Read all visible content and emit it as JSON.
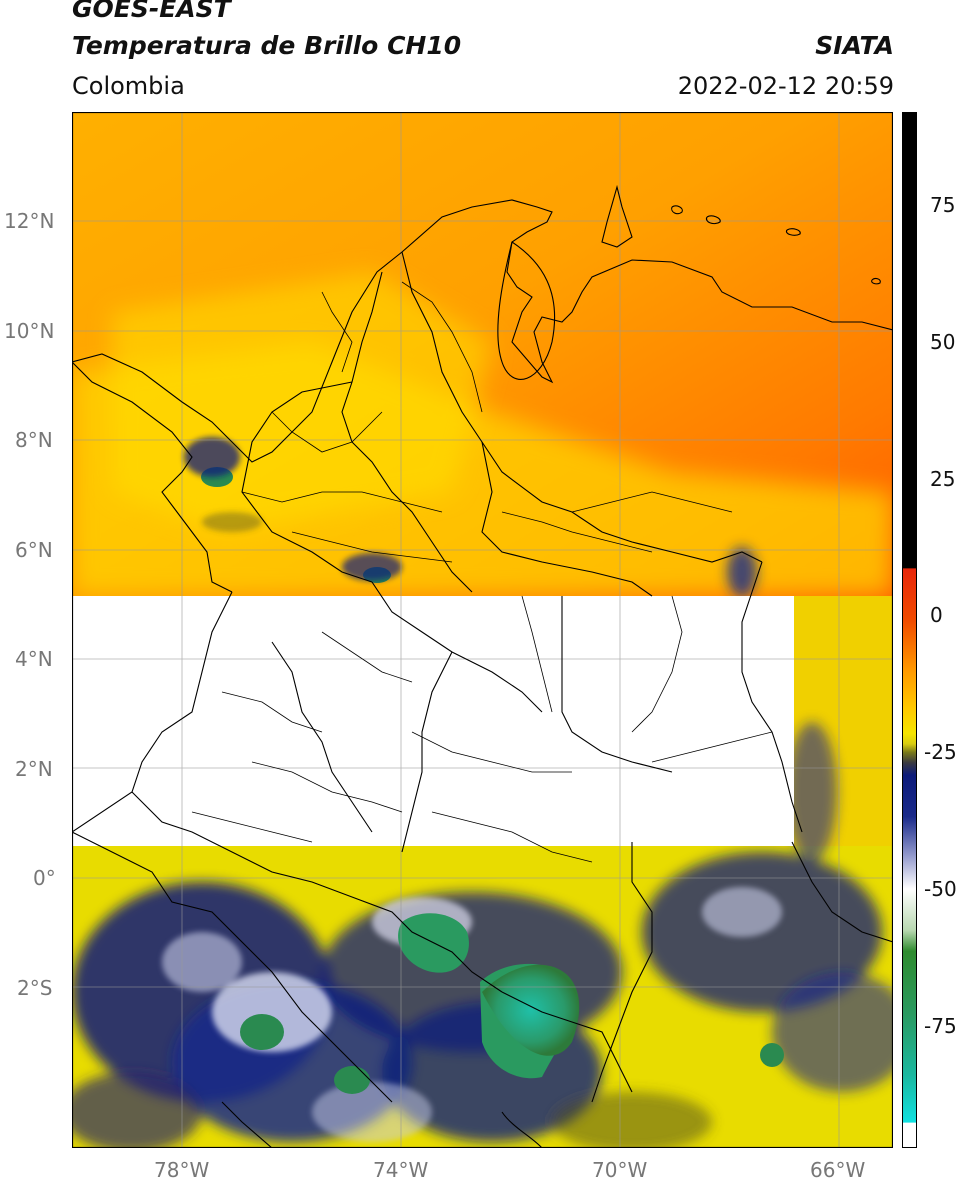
{
  "header": {
    "title_line1": "GOES-EAST",
    "title_line2": "Temperatura de Brillo CH10",
    "brand": "SIATA",
    "region": "Colombia",
    "datetime": "2022-02-12 20:59"
  },
  "map": {
    "lat_labels": [
      "12°N",
      "10°N",
      "8°N",
      "6°N",
      "4°N",
      "2°N",
      "0°",
      "2°S"
    ],
    "lon_labels": [
      "78°W",
      "74°W",
      "70°W",
      "66°W"
    ],
    "gridlines": true,
    "missing_data_band": "white stripe ~0.6°N to 5.2°N"
  },
  "colorbar": {
    "tick_labels": [
      "75",
      "50",
      "25",
      "0",
      "-25",
      "-50",
      "-75"
    ],
    "colors": {
      "warm_black": "#000000",
      "red": "#e8260a",
      "orange": "#ff9a00",
      "yellow": "#f5e400",
      "olive": "#7a7a1a",
      "dark_blue": "#0c1a7a",
      "white": "#ffffff",
      "green": "#2e8b2e",
      "teal": "#1ab8a0",
      "cyan": "#10e0e0"
    }
  }
}
